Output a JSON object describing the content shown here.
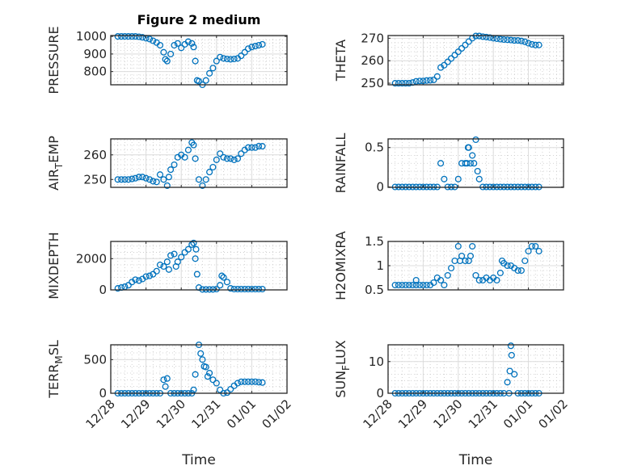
{
  "figure_title": "Figure 2 medium",
  "colors": {
    "marker": "#0072BD",
    "axis": "#262626",
    "grid": "#dcdcdc"
  },
  "chart_data": {
    "type": "scatter",
    "x_units": "days since 12/28",
    "x": [
      0.2,
      0.3,
      0.4,
      0.5,
      0.6,
      0.7,
      0.8,
      0.9,
      1.0,
      1.1,
      1.2,
      1.3,
      1.4,
      1.5,
      1.6,
      1.7,
      1.8,
      1.9,
      2.0,
      2.1,
      2.2,
      2.3,
      2.4,
      2.5,
      2.6,
      2.7,
      2.8,
      2.9,
      3.0,
      3.1,
      3.2,
      3.3,
      3.4,
      3.5,
      3.6,
      3.7,
      3.8,
      3.9,
      4.0,
      4.1,
      4.2,
      4.3
    ],
    "xlim": [
      0,
      5
    ],
    "xtick_values": [
      0,
      1,
      2,
      3,
      4,
      5
    ],
    "xtick_labels": [
      "12/28",
      "12/29",
      "12/30",
      "12/31",
      "01/01",
      "01/02"
    ],
    "xlabel": "Time",
    "grid": true,
    "panels": [
      {
        "id": "pressure",
        "ylabel": [
          "PRESSURE"
        ],
        "ylim": [
          725,
          1005
        ],
        "yticks": [
          800,
          900,
          1000
        ],
        "ytick_labels": [
          "800",
          "900",
          "1000"
        ],
        "values": [
          1000,
          1000,
          1000,
          1000,
          1000,
          1000,
          998,
          995,
          990,
          985,
          975,
          965,
          950,
          910,
          860,
          900,
          950,
          960,
          935,
          955,
          970,
          960,
          860,
          745,
          725,
          750,
          790,
          820,
          860,
          882,
          875,
          872,
          870,
          872,
          875,
          890,
          910,
          930,
          940,
          945,
          950,
          955
        ],
        "extra": [
          [
            1.55,
            870
          ],
          [
            2.35,
            940
          ],
          [
            2.45,
            750
          ]
        ]
      },
      {
        "id": "theta",
        "ylabel": [
          "THETA"
        ],
        "ylim": [
          249.3,
          271.2
        ],
        "yticks": [
          250,
          260,
          270
        ],
        "ytick_labels": [
          "250",
          "260",
          "270"
        ],
        "values": [
          250,
          250,
          250,
          250,
          250,
          250.3,
          250.8,
          251,
          251,
          251.2,
          251.3,
          251.5,
          253,
          257,
          258,
          259.5,
          261,
          262.5,
          264,
          265.5,
          267,
          268.5,
          270,
          271,
          271,
          270.7,
          270.5,
          270.3,
          270,
          269.8,
          269.6,
          269.4,
          269.3,
          269.2,
          269,
          269,
          268.8,
          268.4,
          267.8,
          267.3,
          267,
          267
        ],
        "extra": []
      },
      {
        "id": "air_temp",
        "ylabel": [
          "AIR",
          "T",
          "EMP"
        ],
        "ylim": [
          246.8,
          266.5
        ],
        "yticks": [
          250,
          260
        ],
        "ytick_labels": [
          "250",
          "260"
        ],
        "values": [
          250,
          250,
          250,
          250,
          250.2,
          250.5,
          251,
          251,
          250.5,
          250,
          249.3,
          249,
          252,
          250,
          247.5,
          254,
          256,
          259,
          260,
          259,
          262,
          265,
          258.5,
          250,
          247.5,
          250,
          253,
          255,
          258,
          260.5,
          259,
          258.5,
          258.5,
          258,
          258.5,
          260.5,
          262,
          263,
          263,
          263,
          263.5,
          263.5
        ],
        "extra": [
          [
            2.35,
            264
          ],
          [
            1.65,
            251
          ]
        ]
      },
      {
        "id": "rainfall",
        "ylabel": [
          "RAINFALL"
        ],
        "ylim": [
          -0.005,
          0.61
        ],
        "yticks": [
          0,
          0.5
        ],
        "ytick_labels": [
          "0",
          "0.5"
        ],
        "values": [
          0,
          0,
          0,
          0,
          0,
          0,
          0,
          0,
          0,
          0,
          0,
          0,
          0,
          0.3,
          0.1,
          0,
          0,
          0,
          0.1,
          0.3,
          0.3,
          0.5,
          0.4,
          0.6,
          0.1,
          0,
          0,
          0,
          0,
          0,
          0,
          0,
          0,
          0,
          0,
          0,
          0,
          0,
          0,
          0,
          0,
          0
        ],
        "extra": [
          [
            2.25,
            0.3
          ],
          [
            2.35,
            0.3
          ],
          [
            2.45,
            0.3
          ],
          [
            2.55,
            0.2
          ],
          [
            2.28,
            0.5
          ]
        ]
      },
      {
        "id": "mixdepth",
        "ylabel": [
          "MIXDEPTH"
        ],
        "ylim": [
          0,
          3100
        ],
        "yticks": [
          0,
          2000
        ],
        "ytick_labels": [
          "0",
          "2000"
        ],
        "values": [
          100,
          150,
          200,
          300,
          500,
          650,
          600,
          700,
          850,
          900,
          1000,
          1200,
          1600,
          1500,
          1800,
          2200,
          2300,
          1800,
          2100,
          2400,
          2600,
          2900,
          2000,
          150,
          30,
          30,
          30,
          30,
          50,
          300,
          800,
          500,
          100,
          50,
          50,
          50,
          50,
          50,
          50,
          50,
          50,
          50
        ],
        "extra": [
          [
            1.65,
            1300
          ],
          [
            1.85,
            1500
          ],
          [
            2.35,
            3000
          ],
          [
            2.45,
            1000
          ],
          [
            2.42,
            2600
          ],
          [
            3.15,
            900
          ]
        ]
      },
      {
        "id": "h2omixra",
        "ylabel": [
          "H2OMIXRA"
        ],
        "ylim": [
          0.5,
          1.5
        ],
        "yticks": [
          0.5,
          1,
          1.5
        ],
        "ytick_labels": [
          "0.5",
          "1",
          "1.5"
        ],
        "values": [
          0.6,
          0.6,
          0.6,
          0.6,
          0.6,
          0.6,
          0.6,
          0.6,
          0.6,
          0.6,
          0.6,
          0.65,
          0.75,
          0.7,
          0.6,
          0.8,
          0.95,
          1.1,
          1.4,
          1.2,
          1.1,
          1.1,
          1.4,
          0.8,
          0.7,
          0.7,
          0.75,
          0.7,
          0.75,
          0.7,
          0.85,
          1.05,
          1.0,
          1.0,
          0.95,
          0.9,
          0.9,
          1.1,
          1.3,
          1.4,
          1.4,
          1.3
        ],
        "extra": [
          [
            0.8,
            0.7
          ],
          [
            2.35,
            1.2
          ],
          [
            3.25,
            1.1
          ],
          [
            2.05,
            1.1
          ]
        ]
      },
      {
        "id": "terr_msl",
        "ylabel": [
          "TERR",
          "M",
          "SL"
        ],
        "ylim": [
          0,
          720
        ],
        "yticks": [
          0,
          500
        ],
        "ytick_labels": [
          "0",
          "500"
        ],
        "values": [
          0,
          0,
          0,
          0,
          0,
          0,
          0,
          0,
          0,
          0,
          0,
          0,
          0,
          200,
          220,
          0,
          0,
          0,
          0,
          0,
          0,
          0,
          280,
          720,
          500,
          390,
          300,
          200,
          150,
          50,
          0,
          10,
          60,
          110,
          150,
          170,
          170,
          170,
          170,
          170,
          165,
          160
        ],
        "extra": [
          [
            1.55,
            100
          ],
          [
            2.35,
            50
          ],
          [
            2.55,
            590
          ],
          [
            2.65,
            400
          ],
          [
            2.75,
            250
          ]
        ]
      },
      {
        "id": "sun_flux",
        "ylabel": [
          "SUN",
          "F",
          "LUX"
        ],
        "ylim": [
          0,
          15.3
        ],
        "yticks": [
          0,
          10
        ],
        "ytick_labels": [
          "0",
          "10"
        ],
        "values": [
          0,
          0,
          0,
          0,
          0,
          0,
          0,
          0,
          0,
          0,
          0,
          0,
          0,
          0,
          0,
          0,
          0,
          0,
          0,
          0,
          0,
          0,
          0,
          0,
          0,
          0,
          0,
          0,
          0,
          0,
          0,
          0,
          3.5,
          15,
          6,
          0,
          0,
          0,
          0,
          0,
          0,
          0
        ],
        "extra": [
          [
            3.52,
            12
          ],
          [
            3.47,
            7
          ],
          [
            3.45,
            0
          ]
        ]
      }
    ]
  }
}
